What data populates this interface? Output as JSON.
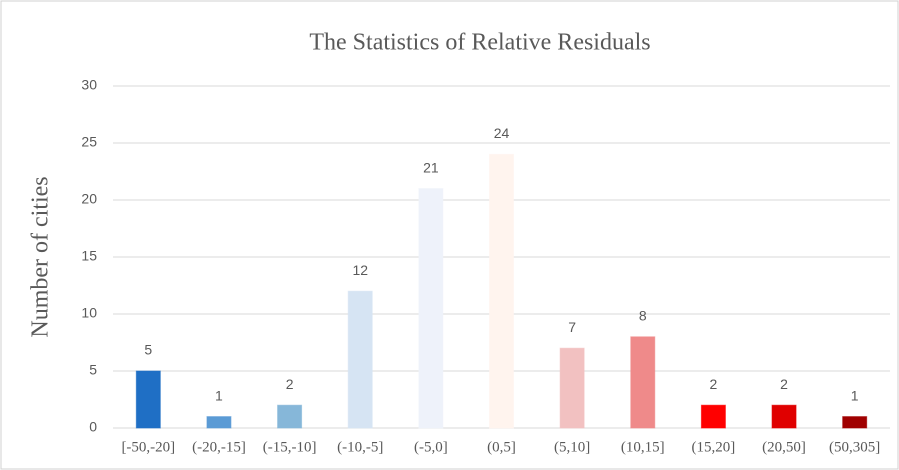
{
  "chart_data": {
    "type": "bar",
    "title": "The Statistics of Relative Residuals",
    "y_label": "Number of cities",
    "categories": [
      "[-50,-20]",
      "(-20,-15]",
      "(-15,-10]",
      "(-10,-5]",
      "(-5,0]",
      "(0,5]",
      "(5,10]",
      "(10,15]",
      "(15,20]",
      "(20,50]",
      "(50,305]"
    ],
    "values": [
      5,
      1,
      2,
      12,
      21,
      24,
      7,
      8,
      2,
      2,
      1
    ],
    "colors": [
      "#1f6fc5",
      "#5b9bd5",
      "#86b7d9",
      "#d6e4f3",
      "#eef2fa",
      "#fff4ee",
      "#f2c1c1",
      "#ef8a8a",
      "#ff0000",
      "#e00000",
      "#a00000"
    ],
    "ylim": [
      0,
      30
    ],
    "yticks": [
      0,
      5,
      10,
      15,
      20,
      25,
      30
    ],
    "grid": true
  }
}
